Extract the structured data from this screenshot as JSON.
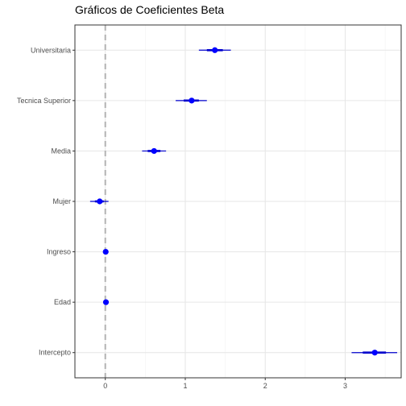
{
  "chart_data": {
    "type": "coefficient-plot",
    "title": "Gráficos de Coeficientes Beta",
    "xlabel": "",
    "ylabel": "",
    "xlim": [
      -0.38,
      3.7
    ],
    "x_ticks": [
      0,
      1,
      2,
      3
    ],
    "x_tick_labels": [
      "0",
      "1",
      "2",
      "3"
    ],
    "grid": true,
    "reference_line": 0,
    "colors": {
      "point": "#0000ff",
      "interval": "#0000cc",
      "reference_line": "#b3b3b3",
      "grid_major": "#e6e6e6",
      "grid_minor": "#f2f2f2",
      "panel_border": "#333333"
    },
    "categories": [
      "Universitaria",
      "Tecnica Superior",
      "Media",
      "Mujer",
      "Ingreso",
      "Edad",
      "Intercepto"
    ],
    "estimates": [
      1.37,
      1.08,
      0.61,
      -0.07,
      0.005,
      0.008,
      3.37
    ],
    "ci_outer_low": [
      1.17,
      0.88,
      0.46,
      -0.19,
      -0.01,
      -0.004,
      3.08
    ],
    "ci_outer_high": [
      1.57,
      1.27,
      0.76,
      0.04,
      0.02,
      0.02,
      3.65
    ],
    "ci_inner_low": [
      1.27,
      0.98,
      0.53,
      -0.13,
      -0.004,
      0.0,
      3.22
    ],
    "ci_inner_high": [
      1.47,
      1.17,
      0.69,
      -0.02,
      0.014,
      0.016,
      3.51
    ]
  }
}
